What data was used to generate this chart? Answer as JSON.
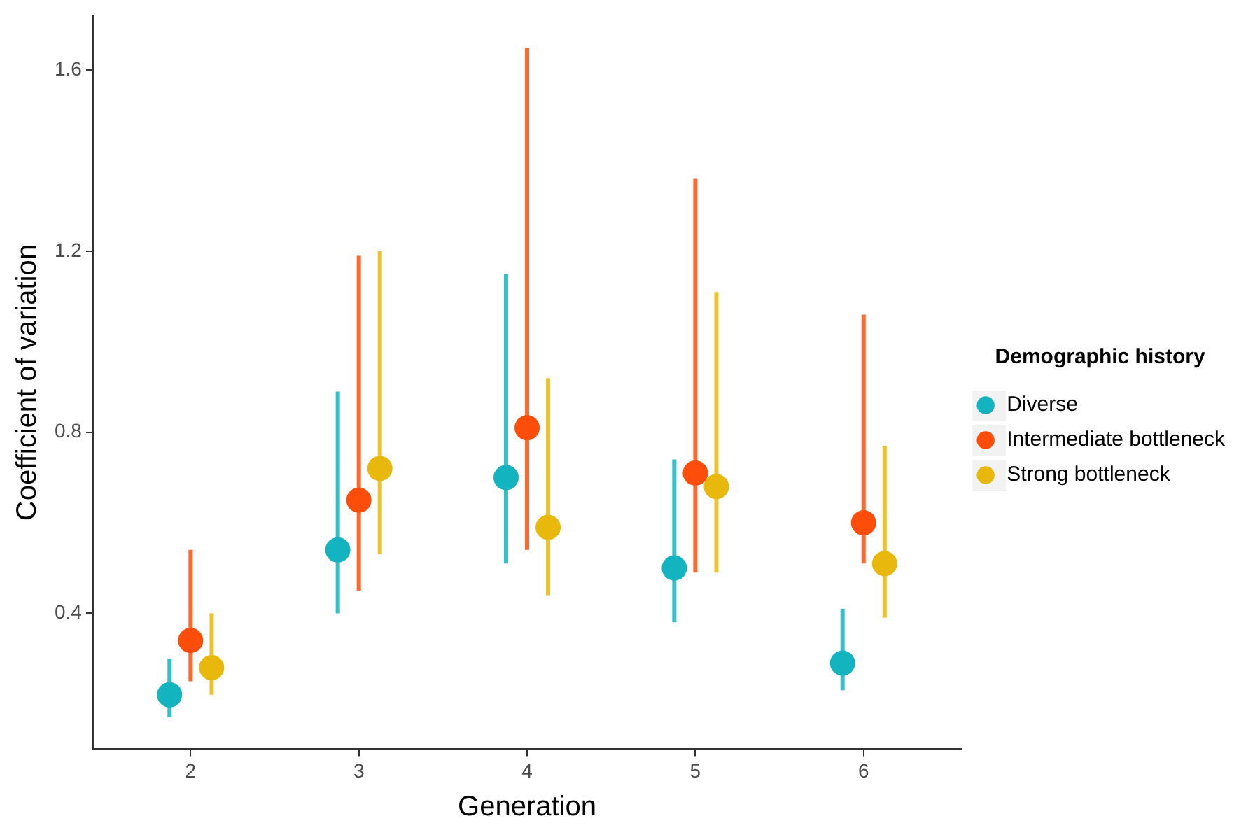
{
  "chart_data": {
    "type": "scatter",
    "xlabel": "Generation",
    "ylabel": "Coefficient of variation",
    "legend_title": "Demographic history",
    "legend": "right",
    "marker": "circle",
    "grid": false,
    "xlim": [
      1.42,
      6.58
    ],
    "xticks": [
      2,
      3,
      4,
      5,
      6
    ],
    "ylim": [
      0.1,
      1.72
    ],
    "yticks": [
      0.4,
      0.8,
      1.2,
      1.6
    ],
    "series": [
      {
        "name": "Diverse",
        "color": "#13b3c0",
        "x": [
          1.875,
          2.875,
          3.875,
          4.875,
          5.875
        ],
        "values": [
          0.22,
          0.54,
          0.7,
          0.5,
          0.29
        ],
        "errors": [
          [
            0.17,
            0.3
          ],
          [
            0.4,
            0.89
          ],
          [
            0.51,
            1.15
          ],
          [
            0.38,
            0.74
          ],
          [
            0.23,
            0.41
          ]
        ]
      },
      {
        "name": "Intermediate bottleneck",
        "color": "#fc4e0a",
        "x": [
          2,
          3,
          4,
          5,
          6
        ],
        "values": [
          0.34,
          0.65,
          0.81,
          0.71,
          0.6
        ],
        "errors": [
          [
            0.25,
            0.54
          ],
          [
            0.45,
            1.19
          ],
          [
            0.54,
            1.65
          ],
          [
            0.49,
            1.36
          ],
          [
            0.51,
            1.06
          ]
        ]
      },
      {
        "name": "Strong bottleneck",
        "color": "#e8b90c",
        "x": [
          2.125,
          3.125,
          4.125,
          5.125,
          6.125
        ],
        "values": [
          0.28,
          0.72,
          0.59,
          0.68,
          0.51
        ],
        "errors": [
          [
            0.22,
            0.4
          ],
          [
            0.53,
            1.2
          ],
          [
            0.44,
            0.92
          ],
          [
            0.49,
            1.11
          ],
          [
            0.39,
            0.77
          ]
        ]
      }
    ]
  }
}
